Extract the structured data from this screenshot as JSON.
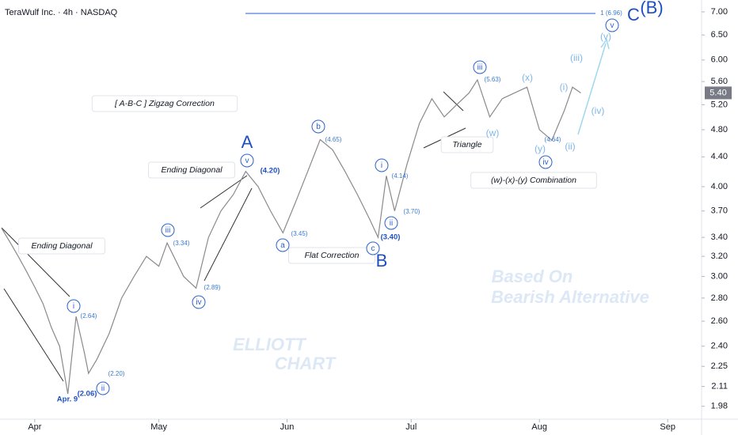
{
  "chart_data": {
    "type": "line",
    "title": "TeraWulf Inc. · 4h · NASDAQ",
    "log_scale": true,
    "xlim": [
      -8.4,
      161.2
    ],
    "xticks": [
      {
        "value": 0,
        "label": "Apr"
      },
      {
        "value": 30,
        "label": "May"
      },
      {
        "value": 61,
        "label": "Jun"
      },
      {
        "value": 91,
        "label": "Jul"
      },
      {
        "value": 122,
        "label": "Aug"
      },
      {
        "value": 153,
        "label": "Sep"
      }
    ],
    "ylim": [
      1.9,
      7.27
    ],
    "yticks": [
      {
        "value": 1.98,
        "label": "1.98"
      },
      {
        "value": 2.11,
        "label": "2.11"
      },
      {
        "value": 2.25,
        "label": "2.25"
      },
      {
        "value": 2.4,
        "label": "2.40"
      },
      {
        "value": 2.6,
        "label": "2.60"
      },
      {
        "value": 2.8,
        "label": "2.80"
      },
      {
        "value": 3,
        "label": "3.00"
      },
      {
        "value": 3.2,
        "label": "3.20"
      },
      {
        "value": 3.4,
        "label": "3.40"
      },
      {
        "value": 3.7,
        "label": "3.70"
      },
      {
        "value": 4,
        "label": "4.00"
      },
      {
        "value": 4.4,
        "label": "4.40"
      },
      {
        "value": 4.8,
        "label": "4.80"
      },
      {
        "value": 5.2,
        "label": "5.20"
      },
      {
        "value": 5.6,
        "label": "5.60"
      },
      {
        "value": 6,
        "label": "6.00"
      },
      {
        "value": 6.5,
        "label": "6.50"
      },
      {
        "value": 7,
        "label": "7.00"
      }
    ],
    "series": [
      {
        "color": "#8a8a8a",
        "x": [
          -8,
          -6,
          -4,
          -2,
          0,
          2,
          4,
          6,
          8,
          10,
          12,
          13,
          15,
          18,
          21,
          24,
          27,
          30,
          32,
          36,
          39,
          42,
          45,
          48,
          51,
          54,
          57,
          60,
          63,
          66,
          69,
          72,
          75,
          78,
          81,
          83,
          85,
          87,
          90,
          93,
          96,
          99,
          102,
          105,
          107,
          110,
          113,
          116,
          119,
          122,
          125,
          128,
          130,
          132
        ],
        "values": [
          3.5,
          3.35,
          3.2,
          3.05,
          2.9,
          2.75,
          2.55,
          2.4,
          2.06,
          2.64,
          2.35,
          2.2,
          2.3,
          2.5,
          2.8,
          3.0,
          3.2,
          3.1,
          3.34,
          3.0,
          2.89,
          3.4,
          3.7,
          3.9,
          4.2,
          4.0,
          3.7,
          3.45,
          3.8,
          4.2,
          4.65,
          4.5,
          4.2,
          3.9,
          3.6,
          3.4,
          4.14,
          3.7,
          4.3,
          4.9,
          5.3,
          5.0,
          5.2,
          5.4,
          5.63,
          5.0,
          5.3,
          5.4,
          5.5,
          4.8,
          4.64,
          5.1,
          5.5,
          5.4
        ]
      }
    ],
    "current_price": {
      "value": 5.4,
      "label": "5.40"
    },
    "annotations": [
      "[ A-B-C ] Zigzag Correction",
      "Ending Diagonal",
      "Ending Diagonal",
      "Flat Correction",
      "Triangle",
      "(w)-(x)-(y) Combination",
      "A",
      "B",
      "C",
      "(B)",
      "i",
      "ii",
      "iii",
      "iv",
      "v",
      "a",
      "b",
      "c",
      "i",
      "ii",
      "iii",
      "iv",
      "v",
      "(v)",
      "(iii)",
      "(i)",
      "(iv)",
      "(ii)",
      "(x)",
      "(w)",
      "(y)",
      "(2.64)",
      "(2.20)",
      "(2.06)",
      "(3.34)",
      "(2.89)",
      "(4.20)",
      "(3.45)",
      "(4.65)",
      "(3.40)",
      "(4.14)",
      "(3.70)",
      "(5.63)",
      "(4.64)",
      "1 (6.96)",
      "Apr. 9",
      "Based On",
      "Bearish Alternative",
      "ELLIOTT",
      "CHART"
    ]
  }
}
